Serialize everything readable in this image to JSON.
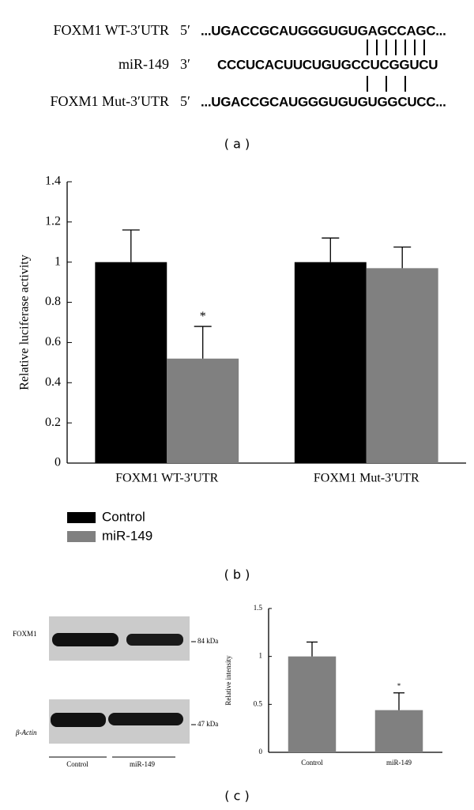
{
  "panel_a": {
    "rows": [
      {
        "label": "FOXM1 WT-3′UTR",
        "end": "5′",
        "sequence": "...UGACCGCAUGGGUGUGAGCCAGC..."
      },
      {
        "label": "miR-149",
        "end": "3′",
        "sequence": "CCCUCACUUCUGUGCCUCGGUCU"
      },
      {
        "label": "FOXM1 Mut-3′UTR",
        "end": "5′",
        "sequence": "...UGACCGCAUGGGUGUGUGGCUCC..."
      }
    ]
  },
  "panel_labels": [
    "( a )",
    "( b )",
    "( c )"
  ],
  "western_blot": {
    "rows": [
      "FOXM1",
      "β-Actin"
    ],
    "sizes": [
      "84 kDa",
      "47 kDa"
    ],
    "lanes": [
      "Control",
      "miR-149"
    ]
  },
  "chart_data": [
    {
      "type": "bar",
      "ylabel": "Relative luciferase activity",
      "categories": [
        "FOXM1 WT-3′UTR",
        "FOXM1 Mut-3′UTR"
      ],
      "series": [
        {
          "name": "Control",
          "color": "#000000",
          "values": [
            1,
            1
          ],
          "errors": [
            0.16,
            0.12
          ],
          "significance": [
            null,
            null
          ]
        },
        {
          "name": "miR-149",
          "color": "#808080",
          "values": [
            0.52,
            0.97
          ],
          "errors": [
            0.16,
            0.105
          ],
          "significance": [
            "*",
            null
          ]
        }
      ],
      "ylim": [
        0,
        1.4
      ],
      "yticks": [
        0,
        0.2,
        0.4,
        0.6,
        0.8,
        1,
        1.2,
        1.4
      ],
      "legend": "bottom-left"
    },
    {
      "type": "bar",
      "ylabel": "Relative intensity",
      "categories": [
        "Control",
        "miR-149"
      ],
      "values": [
        1,
        0.44
      ],
      "errors": [
        0.15,
        0.18
      ],
      "significance": [
        null,
        "*"
      ],
      "color": "#808080",
      "ylim": [
        0,
        1.5
      ],
      "yticks": [
        0,
        0.5,
        1,
        1.5
      ]
    }
  ]
}
